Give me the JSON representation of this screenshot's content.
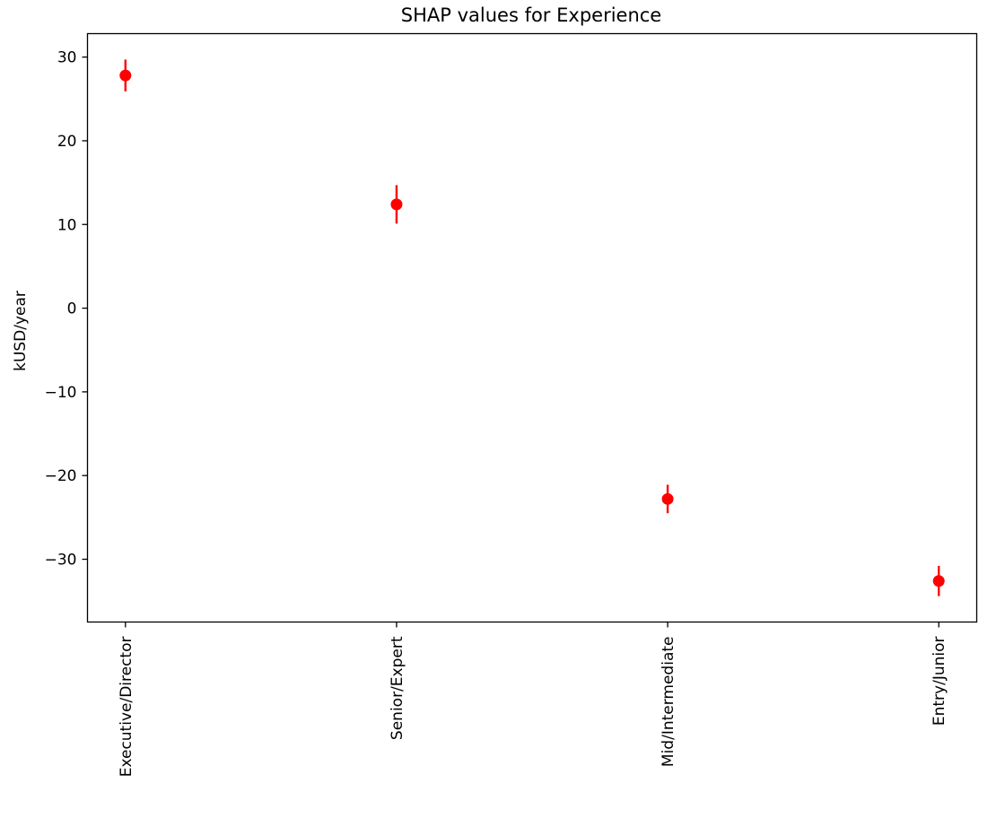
{
  "chart_data": {
    "type": "scatter",
    "title": "SHAP values for Experience",
    "xlabel": "",
    "ylabel": "kUSD/year",
    "categories": [
      "Executive/Director",
      "Senior/Expert",
      "Mid/Intermediate",
      "Entry/Junior"
    ],
    "series": [
      {
        "name": "SHAP values",
        "color": "#ff0000",
        "values": [
          27.8,
          12.4,
          -22.8,
          -32.6
        ],
        "error": [
          1.9,
          2.3,
          1.7,
          1.8
        ]
      }
    ],
    "yticks": [
      30,
      20,
      10,
      0,
      -10,
      -20,
      -30
    ],
    "ytick_labels": [
      "30",
      "20",
      "10",
      "0",
      "−10",
      "−20",
      "−30"
    ],
    "ylim": [
      -37.5,
      32.8
    ],
    "grid": false,
    "legend": "none"
  }
}
